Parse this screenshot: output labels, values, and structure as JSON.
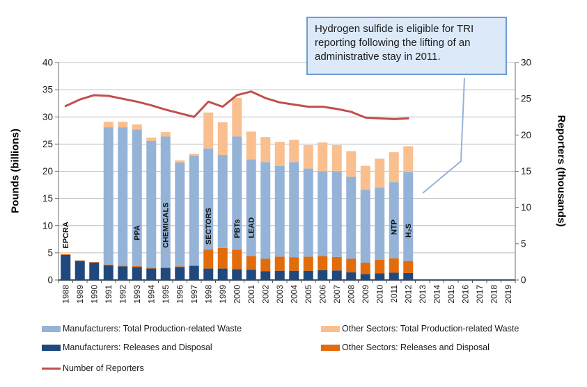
{
  "annotation_box": {
    "text": "Hydrogen sulfide is eligible for TRI reporting following the lifting of an administrative stay in 2011.",
    "points_to": "2012-bar"
  },
  "legend": {
    "items": [
      {
        "label": "Manufacturers: Total Production-related Waste",
        "swatch": "bar",
        "color_key": "mfr_tpw"
      },
      {
        "label": "Manufacturers: Releases and Disposal",
        "swatch": "bar",
        "color_key": "mfr_rel"
      },
      {
        "label": "Number of Reporters",
        "swatch": "line",
        "color_key": "reporters"
      },
      {
        "label": "Other Sectors: Total Production-related Waste",
        "swatch": "bar",
        "color_key": "oth_tpw"
      },
      {
        "label": "Other Sectors: Releases and Disposal",
        "swatch": "bar",
        "color_key": "oth_rel"
      }
    ]
  },
  "chart_data": {
    "type": "bar",
    "subtype": "stacked-bars-with-line",
    "title": "",
    "years": [
      1988,
      1989,
      1990,
      1991,
      1992,
      1993,
      1994,
      1995,
      1996,
      1997,
      1998,
      1999,
      2000,
      2001,
      2002,
      2003,
      2004,
      2005,
      2006,
      2007,
      2008,
      2009,
      2010,
      2011,
      2012,
      2013,
      2014,
      2015,
      2016,
      2017,
      2018,
      2019
    ],
    "left_axis": {
      "title": "Pounds (billions)",
      "min": 0,
      "max": 40,
      "step": 5
    },
    "right_axis": {
      "title": "Reporters (thousands)",
      "min": 0,
      "max": 30,
      "step": 5
    },
    "grid": true,
    "legend_position": "bottom",
    "series": [
      {
        "name": "Manufacturers: Total Production-related Waste",
        "role": "mfr_tpw",
        "axis": "left",
        "type": "bar",
        "values": [
          4.6,
          3.5,
          3.2,
          28.1,
          28.1,
          27.7,
          25.6,
          26.4,
          21.6,
          22.9,
          24.2,
          23.0,
          26.4,
          22.2,
          21.7,
          21.0,
          21.7,
          20.5,
          20.0,
          20.0,
          19.0,
          16.6,
          17.0,
          18.0,
          19.9,
          null,
          null,
          null,
          null,
          null,
          null,
          null
        ]
      },
      {
        "name": "Other Sectors: Total Production-related Waste",
        "role": "oth_tpw",
        "axis": "left",
        "type": "bar",
        "values": [
          0.15,
          0.1,
          0.1,
          1.0,
          1.0,
          0.9,
          0.6,
          0.8,
          0.4,
          0.3,
          6.6,
          6.0,
          7.1,
          5.1,
          4.6,
          4.4,
          4.1,
          4.3,
          5.3,
          4.8,
          4.7,
          4.4,
          5.3,
          5.5,
          4.7,
          null,
          null,
          null,
          null,
          null,
          null,
          null
        ]
      },
      {
        "name": "Manufacturers: Releases and Disposal",
        "role": "mfr_rel",
        "axis": "left",
        "type": "bar",
        "values": [
          4.6,
          3.5,
          3.2,
          2.7,
          2.5,
          2.4,
          2.1,
          2.2,
          2.4,
          2.6,
          2.1,
          2.1,
          2.0,
          1.9,
          1.6,
          1.7,
          1.7,
          1.7,
          1.8,
          1.75,
          1.4,
          1.1,
          1.25,
          1.35,
          1.3,
          null,
          null,
          null,
          null,
          null,
          null,
          null
        ]
      },
      {
        "name": "Other Sectors: Releases and Disposal",
        "role": "oth_rel",
        "axis": "left",
        "type": "bar",
        "values": [
          0.15,
          0.1,
          0.1,
          0.15,
          0.15,
          0.15,
          0.15,
          0.15,
          0.1,
          0.1,
          3.5,
          3.8,
          3.6,
          2.5,
          2.3,
          2.6,
          2.5,
          2.6,
          2.6,
          2.5,
          2.5,
          2.1,
          2.45,
          2.65,
          2.2,
          null,
          null,
          null,
          null,
          null,
          null,
          null
        ]
      },
      {
        "name": "Number of Reporters",
        "role": "reporters",
        "axis": "right",
        "type": "line",
        "values": [
          24.0,
          24.9,
          25.5,
          25.4,
          25.0,
          24.6,
          24.1,
          23.5,
          23.0,
          22.5,
          24.6,
          23.9,
          25.5,
          26.0,
          25.1,
          24.5,
          24.2,
          23.9,
          23.9,
          23.6,
          23.2,
          22.4,
          22.3,
          22.2,
          22.3,
          null,
          null,
          null,
          null,
          null,
          null,
          null
        ]
      }
    ],
    "milestone_labels": [
      {
        "label": "EPCRA",
        "year": 1988,
        "bottom": 5.8
      },
      {
        "label": "PPA",
        "year": 1993,
        "bottom": 7.3
      },
      {
        "label": "CHEMICALS",
        "year": 1995,
        "bottom": 5.9
      },
      {
        "label": "SECTORS",
        "year": 1998,
        "bottom": 6.5
      },
      {
        "label": "PBTs",
        "year": 2000,
        "bottom": 7.7
      },
      {
        "label": "LEAD",
        "year": 2001,
        "bottom": 7.7
      },
      {
        "label": "NTP",
        "year": 2011,
        "bottom": 8.3
      },
      {
        "label": "H₂S",
        "year": 2012,
        "bottom": 7.8
      }
    ],
    "colors": {
      "mfr_tpw": "#95B3D7",
      "mfr_rel": "#1F497D",
      "oth_tpw": "#FABF8F",
      "oth_rel": "#E36C0A",
      "reporters": "#C0504D",
      "callout_line": "#95B3D7",
      "grid": "#BFBFBF",
      "axis": "#6E6E6E",
      "bottom_axis": "#44546A",
      "tick_text": "#1a1a1a",
      "annotation_fill": "#DCE9F8",
      "annotation_border": "#6D9ACF"
    }
  }
}
